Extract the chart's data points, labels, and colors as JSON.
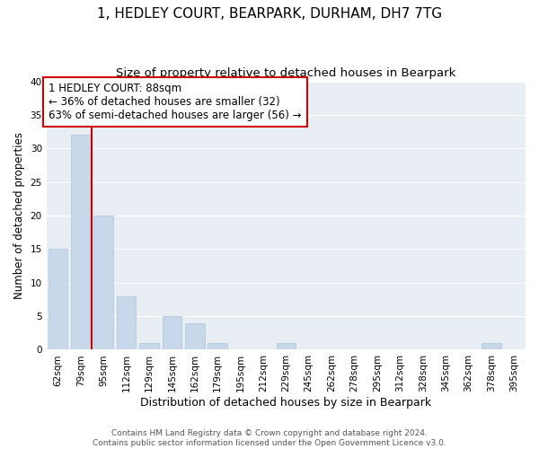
{
  "title": "1, HEDLEY COURT, BEARPARK, DURHAM, DH7 7TG",
  "subtitle": "Size of property relative to detached houses in Bearpark",
  "xlabel": "Distribution of detached houses by size in Bearpark",
  "ylabel": "Number of detached properties",
  "bin_labels": [
    "62sqm",
    "79sqm",
    "95sqm",
    "112sqm",
    "129sqm",
    "145sqm",
    "162sqm",
    "179sqm",
    "195sqm",
    "212sqm",
    "229sqm",
    "245sqm",
    "262sqm",
    "278sqm",
    "295sqm",
    "312sqm",
    "328sqm",
    "345sqm",
    "362sqm",
    "378sqm",
    "395sqm"
  ],
  "bar_values": [
    15,
    32,
    20,
    8,
    1,
    5,
    4,
    1,
    0,
    0,
    1,
    0,
    0,
    0,
    0,
    0,
    0,
    0,
    0,
    1,
    0
  ],
  "bar_color": "#c8d8ea",
  "bar_edge_color": "#aac4da",
  "ylim": [
    0,
    40
  ],
  "yticks": [
    0,
    5,
    10,
    15,
    20,
    25,
    30,
    35,
    40
  ],
  "vline_bin_index": 1,
  "annotation_text_line1": "1 HEDLEY COURT: 88sqm",
  "annotation_text_line2": "← 36% of detached houses are smaller (32)",
  "annotation_text_line3": "63% of semi-detached houses are larger (56) →",
  "vline_color": "#cc0000",
  "annotation_box_edge_color": "#cc0000",
  "background_color": "#ffffff",
  "plot_bg_color": "#e8eef4",
  "grid_color": "#ffffff",
  "footer_line1": "Contains HM Land Registry data © Crown copyright and database right 2024.",
  "footer_line2": "Contains public sector information licensed under the Open Government Licence v3.0.",
  "title_fontsize": 11,
  "subtitle_fontsize": 9.5,
  "xlabel_fontsize": 9,
  "ylabel_fontsize": 8.5,
  "tick_fontsize": 7.5,
  "annotation_fontsize": 8.5,
  "footer_fontsize": 6.5
}
